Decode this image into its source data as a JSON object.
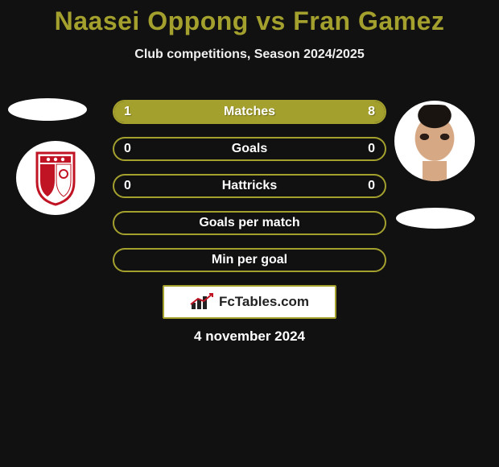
{
  "title_color": "#a4a02e",
  "player1": "Naasei Oppong",
  "vs": "vs",
  "player2": "Fran Gamez",
  "subtitle": "Club competitions, Season 2024/2025",
  "bars": [
    {
      "label": "Matches",
      "left": "1",
      "right": "8",
      "l_frac": 0.111,
      "r_frac": 0.889
    },
    {
      "label": "Goals",
      "left": "0",
      "right": "0",
      "l_frac": 0,
      "r_frac": 0
    },
    {
      "label": "Hattricks",
      "left": "0",
      "right": "0",
      "l_frac": 0,
      "r_frac": 0
    },
    {
      "label": "Goals per match",
      "left": "",
      "right": "",
      "l_frac": 0,
      "r_frac": 0
    },
    {
      "label": "Min per goal",
      "left": "",
      "right": "",
      "l_frac": 0,
      "r_frac": 0
    }
  ],
  "bar_style": {
    "border_color": "#a4a02e",
    "fill_left_color": "#a4a02e",
    "fill_right_color": "#a4a02e",
    "empty_bg": "transparent"
  },
  "watermark": "FcTables.com",
  "date": "4 november 2024",
  "badge_colors": {
    "red": "#c01424",
    "black": "#1a1a1a",
    "white": "#ffffff"
  }
}
